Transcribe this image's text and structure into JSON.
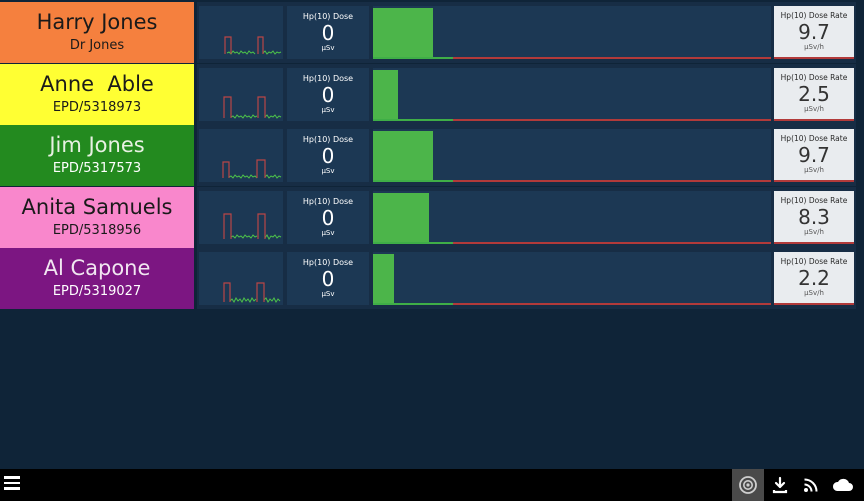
{
  "dose_label": "Hp(10) Dose",
  "dose_unit": "µSv",
  "rate_label": "Hp(10) Dose Rate",
  "rate_unit": "µSv/h",
  "wearers": [
    {
      "name": "Harry Jones",
      "id": "Dr Jones",
      "dose": "0",
      "rate": "9.7",
      "rate_fraction": 0.15,
      "card_color": "#f5803e",
      "text_color": "#1a1a1a",
      "id_color": "#1a1a1a"
    },
    {
      "name": "Anne  Able",
      "id": "EPD/5318973",
      "dose": "0",
      "rate": "2.5",
      "rate_fraction": 0.06,
      "card_color": "#ffff33",
      "text_color": "#1a1a1a",
      "id_color": "#1a1a1a"
    },
    {
      "name": "Jim Jones",
      "id": "EPD/5317573",
      "dose": "0",
      "rate": "9.7",
      "rate_fraction": 0.15,
      "card_color": "#238a1f",
      "text_color": "#e8f1e3",
      "id_color": "#ffffff"
    },
    {
      "name": "Anita Samuels",
      "id": "EPD/5318956",
      "dose": "0",
      "rate": "8.3",
      "rate_fraction": 0.14,
      "card_color": "#f987cc",
      "text_color": "#1a1a1a",
      "id_color": "#1a1a1a"
    },
    {
      "name": "Al Capone",
      "id": "EPD/5319027",
      "dose": "0",
      "rate": "2.2",
      "rate_fraction": 0.05,
      "card_color": "#7c1682",
      "text_color": "#f1e6f1",
      "id_color": "#ffffff"
    }
  ],
  "toolbar": {
    "icons": [
      "menu-icon",
      "camera-icon",
      "download-icon",
      "rss-icon",
      "cloud-icon"
    ]
  }
}
